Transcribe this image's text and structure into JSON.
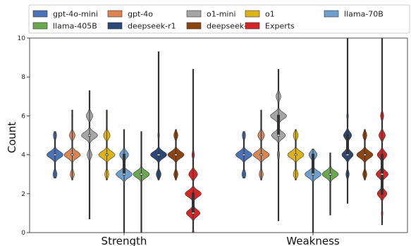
{
  "chart_data": {
    "type": "violin",
    "xlabel": "",
    "ylabel": "Count",
    "ylim": [
      0,
      10
    ],
    "yticks": [
      0,
      2,
      4,
      6,
      8,
      10
    ],
    "categories": [
      "Strength",
      "Weakness"
    ],
    "legend_position": "top",
    "series": [
      {
        "name": "gpt-4o-mini",
        "color": "#4a72b8",
        "groups": [
          {
            "min": 2.8,
            "max": 5.2,
            "median": 4,
            "q1": 4,
            "q3": 4,
            "modes": [
              [
                3,
                0.25
              ],
              [
                4,
                1.0
              ],
              [
                5,
                0.2
              ]
            ]
          },
          {
            "min": 2.8,
            "max": 5.2,
            "median": 4,
            "q1": 4,
            "q3": 4,
            "modes": [
              [
                3,
                0.25
              ],
              [
                4,
                1.0
              ],
              [
                5,
                0.2
              ]
            ]
          }
        ]
      },
      {
        "name": "gpt-4o",
        "color": "#dd8452",
        "groups": [
          {
            "min": 2.7,
            "max": 6.3,
            "median": 4,
            "q1": 4,
            "q3": 4,
            "modes": [
              [
                3,
                0.25
              ],
              [
                4,
                1.0
              ],
              [
                5,
                0.35
              ],
              [
                6,
                0.08
              ]
            ]
          },
          {
            "min": 2.7,
            "max": 6.3,
            "median": 4,
            "q1": 4,
            "q3": 4,
            "modes": [
              [
                3,
                0.25
              ],
              [
                4,
                1.0
              ],
              [
                5,
                0.4
              ],
              [
                6,
                0.08
              ]
            ]
          }
        ]
      },
      {
        "name": "o1-mini",
        "color": "#a5a5a5",
        "groups": [
          {
            "min": 0.7,
            "max": 7.3,
            "median": 5,
            "q1": 5,
            "q3": 5,
            "modes": [
              [
                4,
                0.3
              ],
              [
                5,
                1.0
              ],
              [
                6,
                0.4
              ],
              [
                7,
                0.05
              ],
              [
                1,
                0.03
              ]
            ]
          },
          {
            "min": 0.6,
            "max": 8.4,
            "median": 5,
            "q1": 5,
            "q3": 6,
            "modes": [
              [
                4,
                0.15
              ],
              [
                5,
                0.85
              ],
              [
                6,
                1.0
              ],
              [
                7,
                0.3
              ],
              [
                8,
                0.05
              ]
            ]
          }
        ]
      },
      {
        "name": "o1",
        "color": "#ddb31a",
        "groups": [
          {
            "min": 2.7,
            "max": 6.3,
            "median": 4,
            "q1": 4,
            "q3": 4,
            "modes": [
              [
                3,
                0.25
              ],
              [
                4,
                1.0
              ],
              [
                5,
                0.4
              ],
              [
                6,
                0.08
              ]
            ]
          },
          {
            "min": 2.7,
            "max": 5.3,
            "median": 4,
            "q1": 4,
            "q3": 4,
            "modes": [
              [
                3,
                0.3
              ],
              [
                4,
                1.0
              ],
              [
                5,
                0.3
              ]
            ]
          }
        ]
      },
      {
        "name": "llama-70B",
        "color": "#6f9fcf",
        "groups": [
          {
            "min": 0,
            "max": 5.3,
            "median": 3,
            "q1": 3,
            "q3": 4,
            "modes": [
              [
                3,
                1.0
              ],
              [
                4,
                0.55
              ],
              [
                2,
                0.05
              ],
              [
                5,
                0.05
              ]
            ]
          },
          {
            "min": 0,
            "max": 4.3,
            "median": 3,
            "q1": 3,
            "q3": 4,
            "modes": [
              [
                3,
                1.0
              ],
              [
                4,
                0.5
              ],
              [
                2,
                0.05
              ]
            ]
          }
        ]
      },
      {
        "name": "llama-405B",
        "color": "#6aa84f",
        "groups": [
          {
            "min": 0,
            "max": 5.2,
            "median": 3,
            "q1": 3,
            "q3": 3,
            "modes": [
              [
                3,
                1.0
              ],
              [
                4,
                0.06
              ],
              [
                2,
                0.04
              ]
            ]
          },
          {
            "min": 0.9,
            "max": 4.1,
            "median": 3,
            "q1": 3,
            "q3": 3,
            "modes": [
              [
                3,
                1.0
              ],
              [
                4,
                0.06
              ],
              [
                2,
                0.04
              ]
            ]
          }
        ]
      },
      {
        "name": "deepseek-r1",
        "color": "#2b4876",
        "groups": [
          {
            "min": 2.7,
            "max": 9.3,
            "median": 4,
            "q1": 4,
            "q3": 4,
            "modes": [
              [
                3,
                0.3
              ],
              [
                4,
                1.0
              ],
              [
                5,
                0.1
              ]
            ]
          },
          {
            "min": 1.5,
            "max": 10,
            "median": 4,
            "q1": 4,
            "q3": 5,
            "modes": [
              [
                4,
                0.7
              ],
              [
                5,
                0.5
              ],
              [
                3,
                0.2
              ],
              [
                6,
                0.1
              ]
            ]
          }
        ]
      },
      {
        "name": "deepseek-v3",
        "color": "#8b4513",
        "groups": [
          {
            "min": 2.7,
            "max": 5.3,
            "median": 4,
            "q1": 4,
            "q3": 4,
            "modes": [
              [
                3,
                0.25
              ],
              [
                4,
                1.0
              ],
              [
                5,
                0.25
              ]
            ]
          },
          {
            "min": 2.7,
            "max": 5.3,
            "median": 4,
            "q1": 4,
            "q3": 4,
            "modes": [
              [
                3,
                0.25
              ],
              [
                4,
                1.0
              ],
              [
                5,
                0.25
              ]
            ]
          }
        ]
      },
      {
        "name": "Experts",
        "color": "#d62728",
        "groups": [
          {
            "min": 0,
            "max": 8.4,
            "median": 1,
            "q1": 1,
            "q3": 2,
            "modes": [
              [
                1,
                0.85
              ],
              [
                2,
                1.0
              ],
              [
                3,
                0.55
              ],
              [
                4,
                0.15
              ],
              [
                0,
                0.1
              ]
            ]
          },
          {
            "min": 0.4,
            "max": 10,
            "median": 3,
            "q1": 2,
            "q3": 4,
            "modes": [
              [
                2,
                0.6
              ],
              [
                3,
                0.75
              ],
              [
                4,
                0.6
              ],
              [
                5,
                0.4
              ],
              [
                6,
                0.2
              ],
              [
                1,
                0.1
              ]
            ]
          }
        ]
      }
    ]
  }
}
